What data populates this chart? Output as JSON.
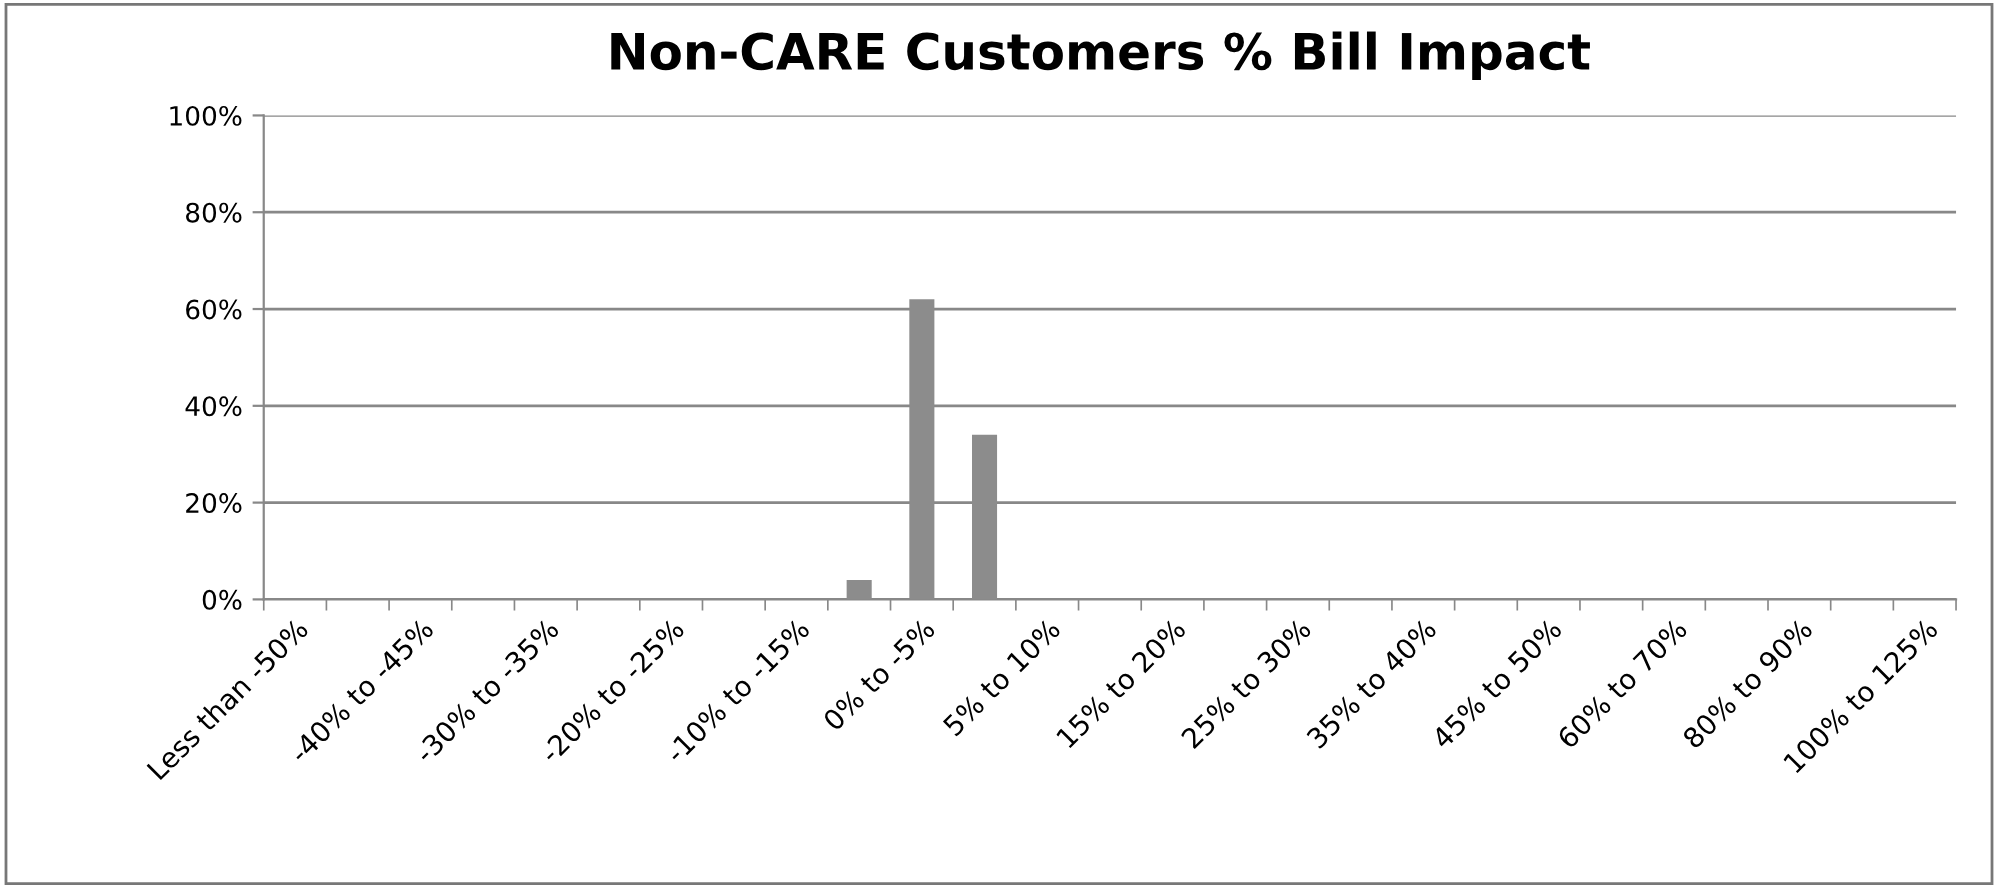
{
  "chart_data": {
    "type": "bar",
    "title": "Non-CARE Customers % Bill Impact",
    "categories": [
      "Less than -50%",
      null,
      "-40% to -45%",
      null,
      "-30% to -35%",
      null,
      "-20% to -25%",
      null,
      "-10% to -15%",
      null,
      "0% to -5%",
      null,
      "5% to 10%",
      null,
      "15% to 20%",
      null,
      "25% to 30%",
      null,
      "35% to 40%",
      null,
      "45% to 50%",
      null,
      "60% to 70%",
      null,
      "80% to 90%",
      null,
      "100% to 125%"
    ],
    "values": [
      0,
      0,
      0,
      0,
      0,
      0,
      0,
      0,
      0,
      4,
      62,
      34,
      0,
      0,
      0,
      0,
      0,
      0,
      0,
      0,
      0,
      0,
      0,
      0,
      0,
      0,
      0
    ],
    "color": "#8c8c8c",
    "ylim": [
      0,
      100
    ],
    "yticks": [
      {
        "value": 0,
        "label": "0%"
      },
      {
        "value": 20,
        "label": "20%"
      },
      {
        "value": 40,
        "label": "40%"
      },
      {
        "value": 60,
        "label": "60%"
      },
      {
        "value": 80,
        "label": "80%"
      },
      {
        "value": 100,
        "label": "100%"
      }
    ],
    "grid": "y",
    "legend": false
  }
}
